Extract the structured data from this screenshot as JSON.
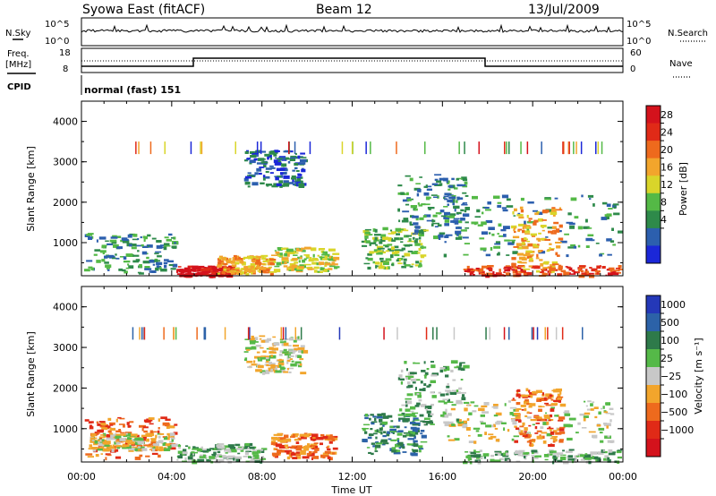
{
  "header": {
    "station": "Syowa East (fitACF)",
    "beam": "Beam 12",
    "date": "13/Jul/2009"
  },
  "summary": {
    "nsky_label": "N.Sky",
    "nsearch_label": "N.Search",
    "freq_label": "Freq.",
    "freq_unit": "[MHz]",
    "nave_label": "Nave",
    "cpid_label": "CPID",
    "cpid_value": "normal (fast) 151",
    "noise_ticks": [
      "10^5",
      "10^0"
    ],
    "freq_ticks": [
      "18",
      "8"
    ],
    "nave_ticks": [
      "60",
      "0"
    ]
  },
  "chart_data": [
    {
      "type": "heatmap",
      "panel": "power",
      "ylabel": "Slant Range [km]",
      "ylim": [
        180,
        4500
      ],
      "yticks": [
        "1000",
        "2000",
        "3000",
        "4000"
      ],
      "xlim": [
        0,
        24
      ],
      "colorbar": {
        "label": "Power [dB]",
        "ticks": [
          "28",
          "24",
          "20",
          "16",
          "12",
          "8",
          "4"
        ],
        "colors": [
          "#1b27d8",
          "#2c5fae",
          "#2e8a4a",
          "#54b946",
          "#d9d52a",
          "#f2a52c",
          "#ee6a1d",
          "#e02a17",
          "#d4121c"
        ]
      },
      "regions": [
        {
          "t0": 0.1,
          "t1": 4.1,
          "r0": 250,
          "r1": 1250,
          "level": 2
        },
        {
          "t0": 4.2,
          "t1": 6.6,
          "r0": 200,
          "r1": 440,
          "level": 8
        },
        {
          "t0": 6.0,
          "t1": 8.4,
          "r0": 250,
          "r1": 700,
          "level": 5
        },
        {
          "t0": 7.2,
          "t1": 9.8,
          "r0": 2400,
          "r1": 3300,
          "level": 1
        },
        {
          "t0": 8.4,
          "t1": 11.2,
          "r0": 300,
          "r1": 900,
          "level": 4
        },
        {
          "t0": 12.4,
          "t1": 15.1,
          "r0": 400,
          "r1": 1400,
          "level": 3
        },
        {
          "t0": 14.0,
          "t1": 17.0,
          "r0": 1100,
          "r1": 2700,
          "level": 2
        },
        {
          "t0": 16.9,
          "t1": 23.8,
          "r0": 200,
          "r1": 450,
          "level": 7
        },
        {
          "t0": 16.0,
          "t1": 23.8,
          "r0": 700,
          "r1": 2200,
          "level": 2
        },
        {
          "t0": 19.0,
          "t1": 21.2,
          "r0": 300,
          "r1": 1900,
          "level": 5
        }
      ]
    },
    {
      "type": "heatmap",
      "panel": "velocity",
      "ylabel": "Slant Range [km]",
      "ylim": [
        180,
        4500
      ],
      "yticks": [
        "1000",
        "2000",
        "3000",
        "4000"
      ],
      "xlim": [
        0,
        24
      ],
      "xticks": [
        "00:00",
        "04:00",
        "08:00",
        "12:00",
        "16:00",
        "20:00",
        "00:00"
      ],
      "xlabel": "Time UT",
      "colorbar": {
        "label": "Velocity [m s⁻¹]",
        "ticks": [
          "1000",
          "500",
          "100",
          "25",
          "−25",
          "−100",
          "−500",
          "−1000"
        ],
        "colors": [
          "#2438b8",
          "#2c62a8",
          "#2e7a4a",
          "#55b948",
          "#c8c8c8",
          "#f2a52c",
          "#ee6a1d",
          "#e02a17",
          "#d4121c"
        ]
      },
      "regions": [
        {
          "t0": 0.1,
          "t1": 4.1,
          "r0": 300,
          "r1": 1300,
          "level": 6
        },
        {
          "t0": 0.3,
          "t1": 4.0,
          "r0": 500,
          "r1": 900,
          "level": 4
        },
        {
          "t0": 4.2,
          "t1": 8.0,
          "r0": 200,
          "r1": 650,
          "level": 3
        },
        {
          "t0": 7.2,
          "t1": 9.8,
          "r0": 2400,
          "r1": 3300,
          "level": 4
        },
        {
          "t0": 8.4,
          "t1": 11.2,
          "r0": 300,
          "r1": 900,
          "level": 6
        },
        {
          "t0": 12.4,
          "t1": 15.1,
          "r0": 400,
          "r1": 1400,
          "level": 2
        },
        {
          "t0": 14.0,
          "t1": 17.0,
          "r0": 1100,
          "r1": 2700,
          "level": 3
        },
        {
          "t0": 16.2,
          "t1": 23.5,
          "r0": 700,
          "r1": 1700,
          "level": 4
        },
        {
          "t0": 16.9,
          "t1": 23.8,
          "r0": 200,
          "r1": 500,
          "level": 3
        },
        {
          "t0": 19.0,
          "t1": 21.2,
          "r0": 600,
          "r1": 2000,
          "level": 6
        }
      ]
    }
  ]
}
